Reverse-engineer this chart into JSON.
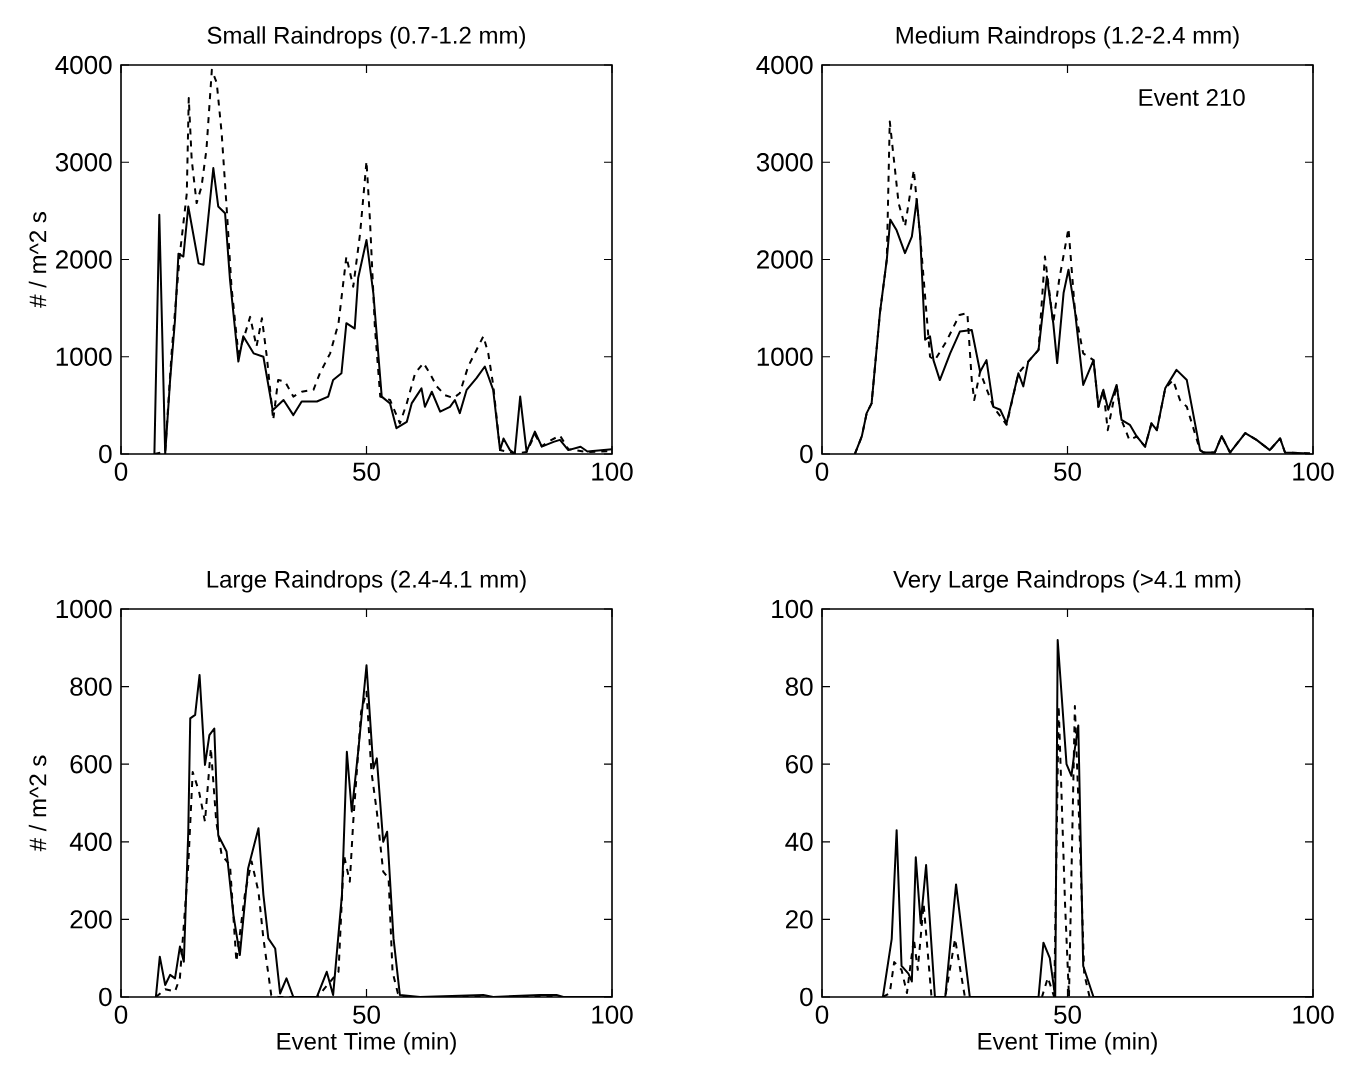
{
  "chart_data": [
    {
      "type": "line",
      "title": "Small Raindrops (0.7-1.2 mm)",
      "ylabel": "# / m^2 s",
      "xlim": [
        0,
        100
      ],
      "ylim": [
        0,
        4000
      ],
      "xticks": [
        0,
        50,
        100
      ],
      "yticks": [
        0,
        1000,
        2000,
        3000,
        4000
      ],
      "series": [
        {
          "color": "#000000",
          "line_style": "solid",
          "x": [
            6.8,
            7.8,
            9.0,
            10,
            11,
            11.7,
            12.7,
            13.7,
            15.8,
            16.8,
            18.8,
            19.8,
            21.2,
            22.2,
            23.9,
            24.9,
            27.0,
            29.0,
            30.9,
            33.1,
            35.1,
            36.8,
            39.9,
            42.2,
            43.2,
            44.9,
            45.9,
            47.6,
            48.3,
            50.0,
            51.4,
            53.1,
            54.8,
            56.1,
            58.2,
            59.2,
            61.2,
            61.9,
            63.3,
            65.0,
            67.0,
            68.0,
            69.0,
            70.4,
            72.4,
            74.1,
            75.8,
            77.2,
            77.9,
            79.2,
            80.2,
            81.3,
            82.6,
            84.3,
            85.7,
            88.1,
            89.4,
            91.1,
            93.6,
            95.0,
            100
          ],
          "values": [
            0,
            2460,
            0,
            760,
            1380,
            2060,
            2030,
            2545,
            1960,
            1945,
            2940,
            2545,
            2475,
            1790,
            950,
            1210,
            1035,
            1000,
            450,
            555,
            400,
            540,
            540,
            590,
            760,
            830,
            1345,
            1290,
            1810,
            2200,
            1650,
            590,
            520,
            265,
            330,
            520,
            675,
            485,
            640,
            435,
            485,
            555,
            420,
            660,
            780,
            900,
            660,
            40,
            160,
            40,
            5,
            590,
            25,
            230,
            75,
            125,
            145,
            40,
            75,
            25,
            50
          ]
        },
        {
          "color": "#000000",
          "line_style": "dashed",
          "x": [
            6.8,
            9.0,
            10.3,
            11.3,
            12.0,
            13.4,
            13.8,
            14.4,
            15.4,
            16.4,
            17.4,
            18.5,
            19.5,
            20.5,
            21.5,
            22.5,
            23.9,
            24.9,
            26.3,
            27.6,
            28.7,
            29.7,
            31.0,
            32.0,
            33.4,
            35.1,
            36.8,
            39.2,
            40.5,
            42.6,
            44.3,
            45.9,
            47.3,
            48.7,
            50.0,
            50.7,
            51.7,
            52.8,
            54.8,
            56.8,
            58.2,
            59.9,
            61.6,
            62.9,
            64.3,
            66.0,
            67.7,
            69.0,
            70.7,
            72.4,
            73.8,
            74.8,
            75.8,
            77.2,
            79.2,
            80.2,
            82.6,
            84.3,
            85.7,
            87.5,
            89.4,
            91.1,
            95.0,
            100
          ],
          "values": [
            0,
            25,
            1035,
            1650,
            2060,
            2680,
            3660,
            3025,
            2580,
            2750,
            3130,
            3950,
            3815,
            3300,
            2545,
            1720,
            1035,
            1175,
            1410,
            1105,
            1395,
            1000,
            350,
            760,
            745,
            590,
            640,
            660,
            830,
            1035,
            1345,
            2030,
            1720,
            2270,
            3010,
            2410,
            1310,
            590,
            555,
            315,
            520,
            830,
            935,
            830,
            695,
            605,
            575,
            625,
            900,
            1070,
            1210,
            1035,
            710,
            40,
            20,
            5,
            20,
            200,
            80,
            140,
            190,
            50,
            20,
            30
          ]
        }
      ]
    },
    {
      "type": "line",
      "title": "Medium Raindrops (1.2-2.4 mm)",
      "annotations": [
        "Event 210"
      ],
      "xlim": [
        0,
        100
      ],
      "ylim": [
        0,
        4000
      ],
      "xticks": [
        0,
        50,
        100
      ],
      "yticks": [
        0,
        1000,
        2000,
        3000,
        4000
      ],
      "series": [
        {
          "color": "#000000",
          "line_style": "solid",
          "x": [
            6.7,
            8.1,
            9.1,
            10.1,
            11.8,
            13.2,
            13.9,
            15.2,
            16.9,
            18.3,
            19.3,
            20.0,
            21.0,
            22.0,
            22.7,
            24.0,
            26.1,
            28.1,
            30.5,
            32.2,
            33.5,
            34.9,
            36.3,
            37.6,
            40.0,
            41.0,
            42.0,
            44.1,
            45.8,
            47.1,
            47.9,
            49.2,
            50.2,
            51.5,
            53.2,
            55.3,
            56.3,
            57.3,
            58.3,
            60.0,
            61.0,
            62.7,
            64.1,
            65.8,
            67.1,
            68.2,
            69.9,
            72.2,
            74.3,
            77.0,
            77.7,
            80.0,
            81.4,
            83.1,
            86.2,
            88.5,
            91.2,
            93.3,
            94.3,
            99.4
          ],
          "values": [
            0,
            180,
            420,
            520,
            1450,
            2000,
            2410,
            2300,
            2065,
            2235,
            2615,
            2235,
            1175,
            1210,
            965,
            760,
            1035,
            1260,
            1275,
            845,
            965,
            485,
            455,
            315,
            830,
            695,
            950,
            1070,
            1825,
            1345,
            935,
            1655,
            1895,
            1480,
            710,
            965,
            485,
            660,
            455,
            710,
            350,
            300,
            180,
            75,
            315,
            245,
            675,
            865,
            760,
            40,
            15,
            15,
            185,
            15,
            215,
            145,
            40,
            160,
            15,
            5
          ]
        },
        {
          "color": "#000000",
          "line_style": "dashed",
          "x": [
            6.7,
            8.1,
            9.1,
            10.1,
            11.8,
            13.2,
            13.8,
            15.6,
            16.9,
            18.7,
            20.0,
            22.0,
            23.0,
            25.3,
            28.0,
            29.6,
            30.5,
            31.0,
            32.2,
            34.9,
            37.6,
            40.0,
            42.0,
            44.1,
            45.4,
            47.1,
            48.3,
            50.2,
            51.5,
            53.2,
            55.3,
            56.3,
            57.3,
            58.2,
            60.0,
            61.0,
            62.6,
            64.1,
            65.8,
            67.1,
            68.2,
            69.9,
            71.5,
            72.9,
            74.3,
            77.0,
            77.7,
            80.0,
            81.4,
            83.1,
            86.2,
            88.5,
            91.2,
            93.3,
            94.3,
            99.4
          ],
          "values": [
            0,
            180,
            420,
            520,
            1450,
            2000,
            3420,
            2580,
            2340,
            2920,
            2235,
            1000,
            965,
            1155,
            1430,
            1450,
            760,
            555,
            845,
            485,
            300,
            830,
            950,
            1070,
            2030,
            1345,
            1790,
            2320,
            1480,
            1035,
            965,
            485,
            660,
            245,
            710,
            350,
            145,
            180,
            75,
            315,
            245,
            675,
            760,
            555,
            485,
            40,
            15,
            15,
            185,
            15,
            215,
            145,
            40,
            160,
            15,
            5
          ]
        }
      ]
    },
    {
      "type": "line",
      "title": "Large Raindrops (2.4-4.1 mm)",
      "xlabel": "Event Time (min)",
      "ylabel": "# / m^2 s",
      "xlim": [
        0,
        100
      ],
      "ylim": [
        0,
        1000
      ],
      "xticks": [
        0,
        50,
        100
      ],
      "yticks": [
        0,
        200,
        400,
        600,
        800,
        1000
      ],
      "series": [
        {
          "color": "#000000",
          "line_style": "solid",
          "x": [
            7.1,
            7.9,
            9.0,
            10.0,
            11.0,
            12.0,
            12.8,
            13.7,
            14.1,
            15.1,
            16.0,
            17.1,
            18.0,
            19.0,
            19.8,
            21.5,
            22.9,
            24.2,
            25.9,
            28.0,
            29.0,
            30.0,
            31.4,
            32.4,
            33.7,
            35.1,
            39.9,
            41.9,
            43.2,
            45.0,
            46.0,
            47.0,
            48.3,
            50.0,
            51.4,
            52.1,
            53.4,
            54.2,
            55.5,
            56.8,
            60.9,
            73.8,
            75.8,
            85.3,
            88.7,
            90.1,
            100
          ],
          "values": [
            0,
            104,
            31,
            57,
            48,
            130,
            91,
            426,
            718,
            727,
            830,
            598,
            675,
            692,
            417,
            375,
            211,
            108,
            332,
            435,
            263,
            151,
            125,
            9,
            48,
            0,
            0,
            65,
            5,
            263,
            632,
            478,
            632,
            855,
            589,
            615,
            400,
            426,
            151,
            5,
            0,
            5,
            0,
            5,
            5,
            0,
            0
          ]
        },
        {
          "color": "#000000",
          "line_style": "dashed",
          "x": [
            7.1,
            9.0,
            11.0,
            12.0,
            13.7,
            14.6,
            15.9,
            17.1,
            18.3,
            19.4,
            20.5,
            22.2,
            23.5,
            25.3,
            26.6,
            28.0,
            29.0,
            30.6,
            32.0,
            40.0,
            44.3,
            45.4,
            46.6,
            47.3,
            48.9,
            50.0,
            51.0,
            52.1,
            53.4,
            54.5,
            55.3,
            56.4,
            57.0,
            100
          ],
          "values": [
            0,
            20,
            14,
            50,
            340,
            580,
            529,
            452,
            641,
            452,
            366,
            340,
            91,
            271,
            349,
            271,
            151,
            5,
            0,
            0,
            65,
            366,
            297,
            452,
            735,
            787,
            581,
            478,
            323,
            306,
            65,
            9,
            0,
            0
          ]
        }
      ]
    },
    {
      "type": "line",
      "title": "Very Large Raindrops (>4.1 mm)",
      "xlabel": "Event Time (min)",
      "xlim": [
        0,
        100
      ],
      "ylim": [
        0,
        100
      ],
      "xticks": [
        0,
        50,
        100
      ],
      "yticks": [
        0,
        20,
        40,
        60,
        80,
        100
      ],
      "series": [
        {
          "color": "#000000",
          "line_style": "solid",
          "x": [
            12.4,
            14.2,
            15.2,
            16.2,
            17.6,
            18.3,
            19.1,
            20.1,
            21.2,
            23.0,
            25.1,
            27.3,
            30.1,
            44.1,
            45.1,
            46.4,
            47.5,
            48.0,
            49.8,
            50.8,
            51.5,
            52.2,
            53.2,
            55.3,
            100
          ],
          "values": [
            0,
            15,
            43,
            8,
            6,
            4,
            36,
            19,
            34,
            0,
            0,
            29,
            0,
            0,
            14,
            10,
            0,
            92,
            60,
            57,
            64,
            70,
            8,
            0,
            0
          ]
        },
        {
          "color": "#000000",
          "line_style": "dashed",
          "x": [
            12.4,
            13.8,
            14.7,
            16.2,
            17.3,
            18.7,
            19.5,
            20.7,
            22.3,
            25.1,
            27.1,
            29.1,
            44.8,
            46.0,
            47.3,
            48.2,
            49.5,
            50.3,
            51.5,
            52.5,
            53.4,
            54.5,
            100
          ],
          "values": [
            0,
            1,
            9,
            7,
            1,
            15,
            7,
            24,
            0,
            0,
            15,
            0,
            0,
            5,
            0,
            75,
            24,
            0,
            75,
            41,
            6,
            0,
            0
          ]
        }
      ]
    }
  ]
}
